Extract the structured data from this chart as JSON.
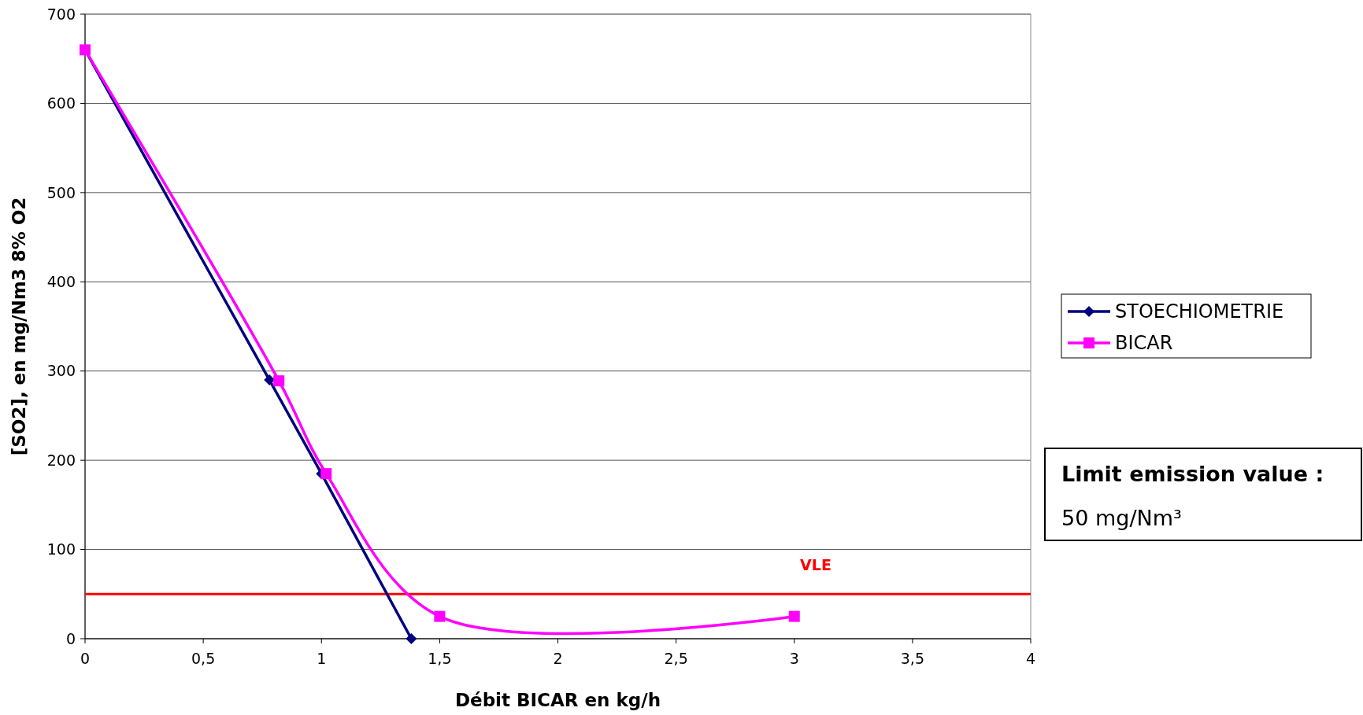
{
  "chart_data": {
    "type": "line",
    "xlabel": "Débit BICAR en kg/h",
    "ylabel": "[SO2], en mg/Nm3 8% O2",
    "xlim": [
      0,
      4
    ],
    "xticks": [
      0,
      {
        "value": 0.5,
        "label": "0,5"
      },
      1,
      {
        "value": 1.5,
        "label": "1,5"
      },
      2,
      {
        "value": 2.5,
        "label": "2,5"
      },
      3,
      {
        "value": 3.5,
        "label": "3,5"
      },
      4
    ],
    "ylim": [
      0,
      700
    ],
    "yticks": [
      0,
      100,
      200,
      300,
      400,
      500,
      600,
      700
    ],
    "grid": "y",
    "legend": "right",
    "series": [
      {
        "name": "STOECHIOMETRIE",
        "color": "#000080",
        "marker": "diamond",
        "x": [
          0,
          0.78,
          1.0,
          1.38
        ],
        "values": [
          660,
          290,
          185,
          0
        ]
      },
      {
        "name": "BICAR",
        "color": "#ff00ff",
        "marker": "square",
        "x": [
          0,
          0.82,
          1.02,
          1.5,
          3.0
        ],
        "values": [
          660,
          289,
          185,
          25,
          25
        ]
      }
    ],
    "ref_lines": [
      {
        "axis": "y",
        "value": 50,
        "label": "VLE",
        "color": "#ff0000"
      }
    ],
    "annotations": [
      "Limit emission value :",
      "50 mg/Nm³"
    ]
  }
}
